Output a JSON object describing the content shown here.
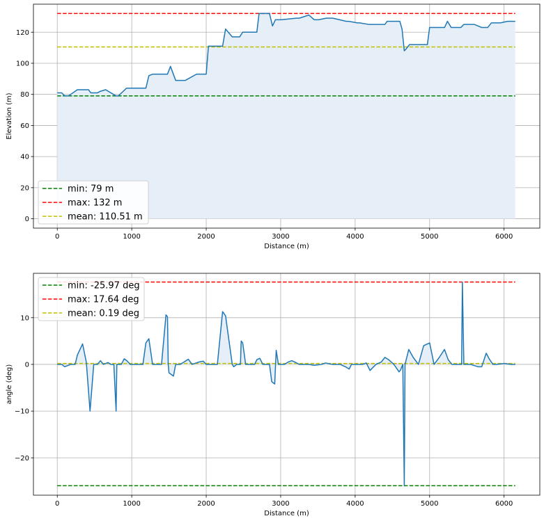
{
  "chart_data": [
    {
      "type": "area",
      "xlabel": "Distance (m)",
      "ylabel": "Elevation (m)",
      "xlim": [
        -320,
        6480
      ],
      "ylim": [
        -6,
        138
      ],
      "xticks": [
        0,
        1000,
        2000,
        3000,
        4000,
        5000,
        6000
      ],
      "yticks": [
        0,
        20,
        40,
        60,
        80,
        100,
        120
      ],
      "grid": true,
      "legend_position": "lower-left",
      "colors": {
        "line": "#1f77b4",
        "fill": "#e6eef8",
        "min": "#008000",
        "max": "#ff0000",
        "mean": "#bfbf00"
      },
      "series": [
        {
          "x": [
            0,
            60,
            100,
            150,
            270,
            300,
            420,
            450,
            540,
            580,
            650,
            790,
            820,
            930,
            960,
            1190,
            1230,
            1280,
            1480,
            1520,
            1590,
            1720,
            1870,
            2000,
            2030,
            2220,
            2260,
            2350,
            2450,
            2490,
            2680,
            2710,
            2850,
            2890,
            2930,
            2970,
            3010,
            3210,
            3250,
            3380,
            3450,
            3510,
            3610,
            3700,
            3880,
            3910,
            4030,
            4060,
            4180,
            4400,
            4430,
            4600,
            4630,
            4660,
            4680,
            4730,
            4970,
            5000,
            5200,
            5240,
            5290,
            5420,
            5460,
            5600,
            5700,
            5780,
            5830,
            5950,
            6050,
            6150
          ],
          "y": [
            81,
            81,
            79,
            79,
            83,
            83,
            83,
            81,
            81,
            82,
            83,
            79,
            79,
            84,
            84,
            84,
            92,
            93,
            93,
            98,
            89,
            89,
            93,
            93,
            111,
            111,
            122,
            117,
            117,
            120,
            120,
            132,
            132,
            124,
            128,
            128,
            128,
            129,
            129,
            131,
            128,
            128,
            129,
            129,
            127,
            127,
            126,
            126,
            125,
            125,
            127,
            127,
            122,
            108,
            109,
            112,
            112,
            123,
            123,
            127,
            123,
            123,
            125,
            125,
            123,
            123,
            126,
            126,
            127,
            127
          ]
        }
      ],
      "reference_lines": [
        {
          "label": "min: 79 m",
          "value": 79
        },
        {
          "label": "max: 132 m",
          "value": 132
        },
        {
          "label": "mean: 110.51 m",
          "value": 110.51
        }
      ]
    },
    {
      "type": "area",
      "xlabel": "Distance (m)",
      "ylabel": "angle (deg)",
      "xlim": [
        -320,
        6480
      ],
      "ylim": [
        -28,
        19.5
      ],
      "xticks": [
        0,
        1000,
        2000,
        3000,
        4000,
        5000,
        6000
      ],
      "yticks": [
        -20,
        -10,
        0,
        10
      ],
      "grid": true,
      "legend_position": "upper-left",
      "colors": {
        "line": "#1f77b4",
        "fill": "#e6eef8",
        "min": "#008000",
        "max": "#ff0000",
        "mean": "#bfbf00"
      },
      "series": [
        {
          "x": [
            0,
            60,
            100,
            180,
            240,
            270,
            340,
            390,
            440,
            490,
            540,
            580,
            620,
            680,
            720,
            760,
            790,
            800,
            820,
            860,
            900,
            940,
            980,
            1030,
            1080,
            1150,
            1190,
            1230,
            1280,
            1310,
            1400,
            1460,
            1480,
            1490,
            1500,
            1560,
            1590,
            1650,
            1700,
            1760,
            1810,
            1900,
            1960,
            2000,
            2040,
            2100,
            2150,
            2220,
            2260,
            2350,
            2370,
            2410,
            2460,
            2470,
            2490,
            2530,
            2600,
            2650,
            2680,
            2720,
            2760,
            2850,
            2880,
            2920,
            2940,
            2970,
            3050,
            3100,
            3150,
            3190,
            3250,
            3320,
            3380,
            3450,
            3550,
            3600,
            3700,
            3750,
            3800,
            3880,
            3920,
            3950,
            4000,
            4100,
            4150,
            4200,
            4280,
            4350,
            4400,
            4450,
            4520,
            4590,
            4610,
            4640,
            4660,
            4670,
            4720,
            4780,
            4850,
            4920,
            5000,
            5060,
            5130,
            5200,
            5250,
            5300,
            5400,
            5430,
            5440,
            5460,
            5550,
            5650,
            5700,
            5760,
            5800,
            5850,
            5900,
            6000,
            6100,
            6150
          ],
          "y": [
            0,
            0,
            -0.5,
            0,
            0,
            2,
            4.4,
            0.5,
            -10,
            0,
            0,
            0.8,
            0,
            0.4,
            0,
            0,
            -10,
            0,
            0,
            0,
            1.2,
            0.7,
            0,
            0,
            0,
            0,
            4.6,
            5.5,
            0,
            0,
            0,
            10.6,
            10.2,
            0,
            -1.8,
            -2.5,
            0,
            0,
            0.5,
            1.1,
            0,
            0.5,
            0.7,
            0,
            0,
            0,
            0,
            11.3,
            10.4,
            0,
            -0.5,
            0,
            0,
            5,
            4.6,
            0,
            0,
            0,
            1,
            1.3,
            0,
            0,
            -3.7,
            -4.2,
            3,
            0,
            0,
            0.5,
            0.8,
            0.5,
            0,
            0,
            0,
            -0.2,
            0,
            0.3,
            0,
            0,
            0,
            -0.6,
            -1,
            0,
            0,
            0,
            0.3,
            -1.3,
            0,
            0.5,
            1.5,
            1,
            0,
            -1.6,
            -1.2,
            0,
            -26,
            0,
            3.2,
            1.5,
            0,
            4,
            4.6,
            0,
            1.5,
            3.2,
            1,
            0,
            0,
            0,
            17.6,
            0,
            0,
            -0.5,
            -0.5,
            2.4,
            1.2,
            0,
            0,
            0.2,
            0,
            0
          ]
        }
      ],
      "reference_lines": [
        {
          "label": "min: -25.97 deg",
          "value": -25.97
        },
        {
          "label": "max: 17.64 deg",
          "value": 17.64
        },
        {
          "label": "mean: 0.19 deg",
          "value": 0.19
        }
      ]
    }
  ]
}
